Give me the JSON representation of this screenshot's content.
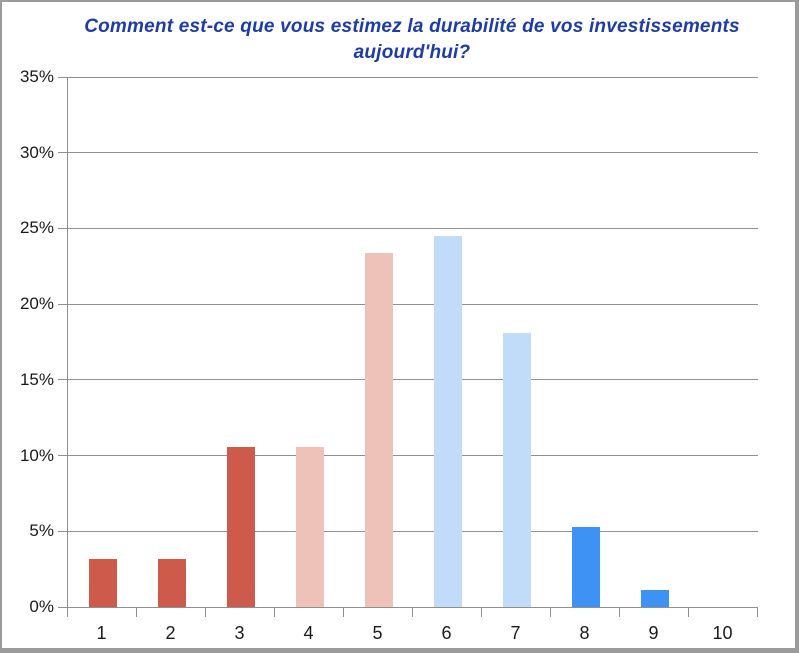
{
  "chart_data": {
    "type": "bar",
    "title": "Comment est-ce que vous estimez la durabilité de vos investissements aujourd'hui?",
    "categories": [
      "1",
      "2",
      "3",
      "4",
      "5",
      "6",
      "7",
      "8",
      "9",
      "10"
    ],
    "values": [
      3.2,
      3.2,
      10.6,
      10.6,
      23.4,
      24.5,
      18.1,
      5.3,
      1.1,
      0
    ],
    "bar_colors": [
      "#cd5a4b",
      "#cd5a4b",
      "#cd5a4b",
      "#efc2b9",
      "#efc2b9",
      "#c1dcf8",
      "#c1dcf8",
      "#3e92f3",
      "#3e92f3",
      "#3e92f3"
    ],
    "xlabel": "",
    "ylabel": "",
    "ylim": [
      0,
      35
    ],
    "ytick_step": 5,
    "ytick_labels": [
      "0%",
      "5%",
      "10%",
      "15%",
      "20%",
      "25%",
      "30%",
      "35%"
    ],
    "grid": true,
    "legend_position": "none"
  },
  "colors": {
    "title": "#1e3ca8",
    "gridline": "#8f8f8f",
    "axis": "#8f8f8f",
    "tick_text": "#1a1a1a",
    "plot_background": "#ffffff",
    "frame_border": "#9b9b9b"
  }
}
